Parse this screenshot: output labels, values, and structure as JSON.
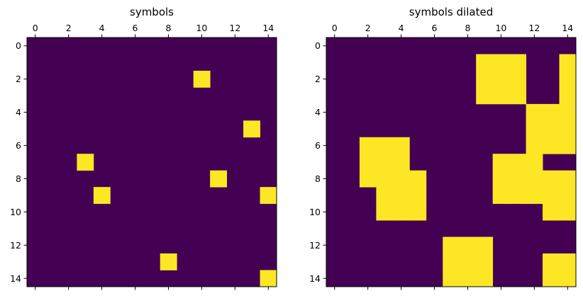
{
  "colors": {
    "background": "#440154",
    "foreground": "#fde725"
  },
  "chart_data": [
    {
      "type": "heatmap",
      "title": "symbols",
      "xlabel": "",
      "ylabel": "",
      "xlim": [
        -0.5,
        14.5
      ],
      "ylim": [
        14.5,
        -0.5
      ],
      "xticks": [
        0,
        2,
        4,
        6,
        8,
        10,
        12,
        14
      ],
      "yticks": [
        0,
        2,
        4,
        6,
        8,
        10,
        12,
        14
      ],
      "grid": false,
      "value_range": [
        0,
        1
      ],
      "cells": [
        [
          10,
          2
        ],
        [
          13,
          5
        ],
        [
          3,
          7
        ],
        [
          11,
          8
        ],
        [
          4,
          9
        ],
        [
          14,
          9
        ],
        [
          8,
          13
        ],
        [
          14,
          14
        ]
      ]
    },
    {
      "type": "heatmap",
      "title": "symbols dilated",
      "xlabel": "",
      "ylabel": "",
      "xlim": [
        -0.5,
        14.5
      ],
      "ylim": [
        14.5,
        -0.5
      ],
      "xticks": [
        0,
        2,
        4,
        6,
        8,
        10,
        12,
        14
      ],
      "yticks": [
        0,
        2,
        4,
        6,
        8,
        10,
        12,
        14
      ],
      "grid": false,
      "value_range": [
        0,
        1
      ],
      "cells": [
        [
          9,
          1
        ],
        [
          10,
          1
        ],
        [
          11,
          1
        ],
        [
          14,
          1
        ],
        [
          9,
          2
        ],
        [
          10,
          2
        ],
        [
          11,
          2
        ],
        [
          14,
          2
        ],
        [
          9,
          3
        ],
        [
          10,
          3
        ],
        [
          11,
          3
        ],
        [
          14,
          3
        ],
        [
          12,
          4
        ],
        [
          13,
          4
        ],
        [
          14,
          4
        ],
        [
          12,
          5
        ],
        [
          13,
          5
        ],
        [
          14,
          5
        ],
        [
          2,
          6
        ],
        [
          3,
          6
        ],
        [
          4,
          6
        ],
        [
          12,
          6
        ],
        [
          13,
          6
        ],
        [
          14,
          6
        ],
        [
          2,
          7
        ],
        [
          3,
          7
        ],
        [
          4,
          7
        ],
        [
          10,
          7
        ],
        [
          11,
          7
        ],
        [
          12,
          7
        ],
        [
          2,
          8
        ],
        [
          3,
          8
        ],
        [
          4,
          8
        ],
        [
          5,
          8
        ],
        [
          10,
          8
        ],
        [
          11,
          8
        ],
        [
          12,
          8
        ],
        [
          13,
          8
        ],
        [
          14,
          8
        ],
        [
          3,
          9
        ],
        [
          4,
          9
        ],
        [
          5,
          9
        ],
        [
          10,
          9
        ],
        [
          11,
          9
        ],
        [
          12,
          9
        ],
        [
          13,
          9
        ],
        [
          14,
          9
        ],
        [
          3,
          10
        ],
        [
          4,
          10
        ],
        [
          5,
          10
        ],
        [
          13,
          10
        ],
        [
          14,
          10
        ],
        [
          7,
          12
        ],
        [
          8,
          12
        ],
        [
          9,
          12
        ],
        [
          7,
          13
        ],
        [
          8,
          13
        ],
        [
          9,
          13
        ],
        [
          13,
          13
        ],
        [
          14,
          13
        ],
        [
          7,
          14
        ],
        [
          8,
          14
        ],
        [
          9,
          14
        ],
        [
          13,
          14
        ],
        [
          14,
          14
        ]
      ]
    }
  ]
}
